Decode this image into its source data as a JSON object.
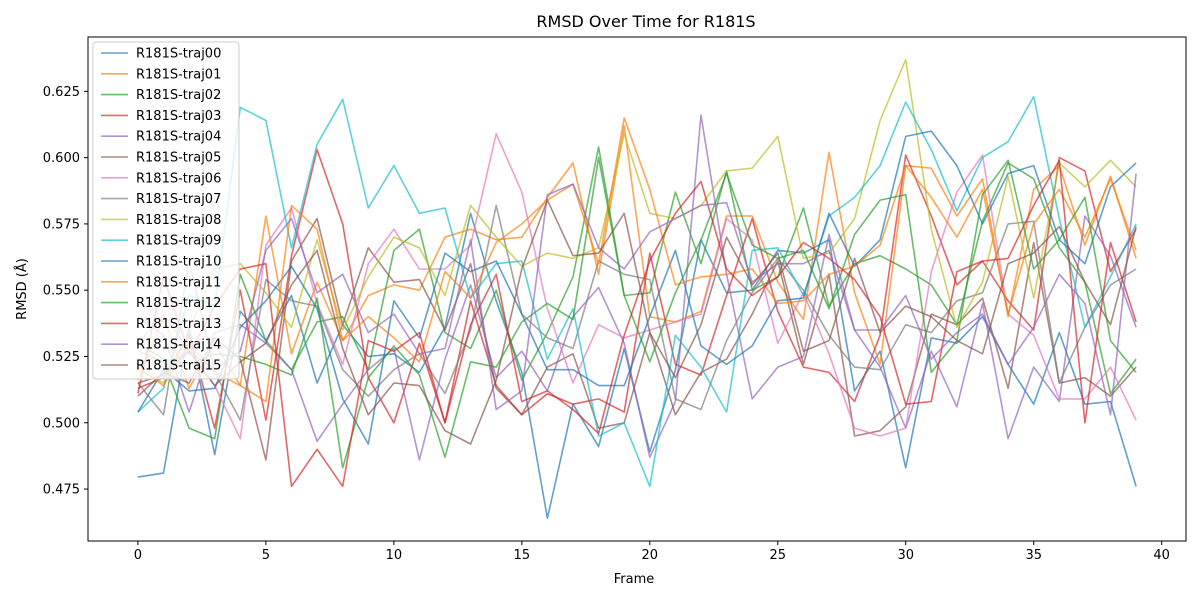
{
  "chart_data": {
    "type": "line",
    "title": "RMSD Over Time for R181S",
    "xlabel": "Frame",
    "ylabel": "RMSD (Å)",
    "xlim": [
      -1.95,
      40.95
    ],
    "ylim": [
      0.4554,
      0.6455
    ],
    "x_ticks": [
      0,
      5,
      10,
      15,
      20,
      25,
      30,
      35,
      40
    ],
    "y_ticks": [
      0.475,
      0.5,
      0.525,
      0.55,
      0.575,
      0.6,
      0.625
    ],
    "y_tick_labels": [
      "0.475",
      "0.500",
      "0.525",
      "0.550",
      "0.575",
      "0.600",
      "0.625"
    ],
    "x_tick_labels": [
      "0",
      "5",
      "10",
      "15",
      "20",
      "25",
      "30",
      "35",
      "40"
    ],
    "grid": false,
    "legend_position": "top-left",
    "x": [
      0,
      1,
      2,
      3,
      4,
      5,
      6,
      7,
      8,
      9,
      10,
      11,
      12,
      13,
      14,
      15,
      16,
      17,
      18,
      19,
      20,
      21,
      22,
      23,
      24,
      25,
      26,
      27,
      28,
      29,
      30,
      31,
      32,
      33,
      34,
      35,
      36,
      37,
      38,
      39
    ],
    "series": [
      {
        "name": "R181S-traj00",
        "color": "#1f77b4",
        "values": [
          0.4795,
          0.481,
          0.536,
          0.488,
          0.542,
          0.531,
          0.548,
          0.515,
          0.537,
          0.525,
          0.526,
          0.519,
          0.536,
          0.579,
          0.546,
          0.519,
          0.464,
          0.507,
          0.491,
          0.528,
          0.489,
          0.52,
          0.569,
          0.549,
          0.55,
          0.565,
          0.564,
          0.569,
          0.512,
          0.527,
          0.483,
          0.532,
          0.53,
          0.54,
          0.522,
          0.507,
          0.534,
          0.507,
          0.508,
          0.476
        ]
      },
      {
        "name": "R181S-traj01",
        "color": "#ff7f0e",
        "values": [
          0.516,
          0.54,
          0.513,
          0.53,
          0.514,
          0.578,
          0.526,
          0.553,
          0.531,
          0.548,
          0.552,
          0.55,
          0.57,
          0.573,
          0.569,
          0.57,
          0.585,
          0.598,
          0.556,
          0.612,
          0.54,
          0.538,
          0.542,
          0.578,
          0.578,
          0.553,
          0.539,
          0.602,
          0.549,
          0.522,
          0.597,
          0.596,
          0.578,
          0.592,
          0.54,
          0.588,
          0.597,
          0.567,
          0.593,
          0.562
        ]
      },
      {
        "name": "R181S-traj02",
        "color": "#2ca02c",
        "values": [
          0.527,
          0.523,
          0.498,
          0.494,
          0.556,
          0.531,
          0.52,
          0.538,
          0.54,
          0.52,
          0.565,
          0.573,
          0.534,
          0.528,
          0.55,
          0.516,
          0.534,
          0.555,
          0.604,
          0.548,
          0.549,
          0.587,
          0.56,
          0.595,
          0.55,
          0.555,
          0.581,
          0.544,
          0.56,
          0.563,
          0.558,
          0.552,
          0.537,
          0.576,
          0.598,
          0.592,
          0.566,
          0.553,
          0.511,
          0.524
        ]
      },
      {
        "name": "R181S-traj03",
        "color": "#d62728",
        "values": [
          0.513,
          0.517,
          0.533,
          0.498,
          0.55,
          0.501,
          0.563,
          0.603,
          0.575,
          0.517,
          0.5,
          0.53,
          0.5,
          0.546,
          0.514,
          0.503,
          0.511,
          0.507,
          0.509,
          0.504,
          0.564,
          0.522,
          0.518,
          0.548,
          0.577,
          0.542,
          0.521,
          0.519,
          0.508,
          0.533,
          0.601,
          0.578,
          0.552,
          0.561,
          0.546,
          0.535,
          0.6,
          0.595,
          0.557,
          0.573
        ]
      },
      {
        "name": "R181S-traj04",
        "color": "#9467bd",
        "values": [
          0.54,
          0.533,
          0.504,
          0.534,
          0.537,
          0.53,
          0.52,
          0.493,
          0.507,
          0.52,
          0.528,
          0.486,
          0.524,
          0.552,
          0.517,
          0.527,
          0.512,
          0.54,
          0.551,
          0.53,
          0.487,
          0.508,
          0.616,
          0.556,
          0.509,
          0.521,
          0.525,
          0.571,
          0.535,
          0.521,
          0.498,
          0.527,
          0.506,
          0.545,
          0.494,
          0.521,
          0.508,
          0.578,
          0.563,
          0.536
        ]
      },
      {
        "name": "R181S-traj05",
        "color": "#8c564b",
        "values": [
          0.51,
          0.519,
          0.515,
          0.532,
          0.524,
          0.486,
          0.561,
          0.577,
          0.537,
          0.566,
          0.553,
          0.554,
          0.535,
          0.56,
          0.513,
          0.503,
          0.521,
          0.526,
          0.498,
          0.5,
          0.534,
          0.503,
          0.519,
          0.524,
          0.541,
          0.561,
          0.522,
          0.556,
          0.495,
          0.497,
          0.506,
          0.541,
          0.537,
          0.547,
          0.513,
          0.568,
          0.515,
          0.517,
          0.51,
          0.521
        ]
      },
      {
        "name": "R181S-traj06",
        "color": "#e377c2",
        "values": [
          0.53,
          0.541,
          0.527,
          0.514,
          0.494,
          0.567,
          0.581,
          0.545,
          0.522,
          0.56,
          0.573,
          0.558,
          0.558,
          0.567,
          0.609,
          0.587,
          0.543,
          0.515,
          0.537,
          0.532,
          0.535,
          0.538,
          0.541,
          0.577,
          0.569,
          0.53,
          0.549,
          0.526,
          0.498,
          0.495,
          0.498,
          0.557,
          0.587,
          0.601,
          0.541,
          0.533,
          0.509,
          0.509,
          0.521,
          0.501
        ]
      },
      {
        "name": "R181S-traj07",
        "color": "#7f7f7f",
        "values": [
          0.515,
          0.503,
          0.561,
          0.519,
          0.501,
          0.554,
          0.546,
          0.544,
          0.52,
          0.51,
          0.52,
          0.526,
          0.511,
          0.535,
          0.582,
          0.541,
          0.532,
          0.528,
          0.561,
          0.556,
          0.554,
          0.509,
          0.505,
          0.531,
          0.549,
          0.562,
          0.55,
          0.533,
          0.521,
          0.52,
          0.537,
          0.534,
          0.546,
          0.549,
          0.575,
          0.576,
          0.515,
          0.536,
          0.552,
          0.558
        ]
      },
      {
        "name": "R181S-traj08",
        "color": "#bcbd22",
        "values": [
          0.52,
          0.515,
          0.535,
          0.558,
          0.56,
          0.549,
          0.536,
          0.569,
          0.535,
          0.555,
          0.57,
          0.566,
          0.548,
          0.582,
          0.57,
          0.559,
          0.564,
          0.562,
          0.566,
          0.609,
          0.579,
          0.577,
          0.582,
          0.595,
          0.596,
          0.608,
          0.562,
          0.564,
          0.577,
          0.614,
          0.637,
          0.573,
          0.536,
          0.553,
          0.593,
          0.547,
          0.598,
          0.589,
          0.599,
          0.589
        ]
      },
      {
        "name": "R181S-traj09",
        "color": "#17becf",
        "values": [
          0.504,
          0.513,
          0.548,
          0.544,
          0.619,
          0.614,
          0.566,
          0.605,
          0.622,
          0.581,
          0.597,
          0.579,
          0.581,
          0.547,
          0.56,
          0.561,
          0.524,
          0.543,
          0.495,
          0.5,
          0.476,
          0.533,
          0.521,
          0.504,
          0.565,
          0.566,
          0.548,
          0.578,
          0.585,
          0.597,
          0.621,
          0.603,
          0.58,
          0.6,
          0.606,
          0.623,
          0.577,
          0.536,
          0.555,
          0.575
        ]
      },
      {
        "name": "R181S-traj10",
        "color": "#1f77b4",
        "values": [
          0.504,
          0.52,
          0.512,
          0.513,
          0.536,
          0.546,
          0.559,
          0.543,
          0.509,
          0.492,
          0.546,
          0.532,
          0.564,
          0.557,
          0.561,
          0.541,
          0.52,
          0.52,
          0.514,
          0.514,
          0.54,
          0.565,
          0.529,
          0.522,
          0.529,
          0.546,
          0.547,
          0.579,
          0.559,
          0.569,
          0.608,
          0.61,
          0.597,
          0.575,
          0.594,
          0.597,
          0.569,
          0.56,
          0.589,
          0.598
        ]
      },
      {
        "name": "R181S-traj11",
        "color": "#ff7f0e",
        "values": [
          0.521,
          0.514,
          0.53,
          0.519,
          0.514,
          0.508,
          0.582,
          0.573,
          0.531,
          0.54,
          0.532,
          0.523,
          0.557,
          0.547,
          0.568,
          0.575,
          0.584,
          0.59,
          0.56,
          0.615,
          0.588,
          0.552,
          0.555,
          0.556,
          0.558,
          0.545,
          0.546,
          0.556,
          0.559,
          0.567,
          0.597,
          0.585,
          0.57,
          0.588,
          0.541,
          0.575,
          0.588,
          0.57,
          0.592,
          0.565
        ]
      },
      {
        "name": "R181S-traj12",
        "color": "#2ca02c",
        "values": [
          0.53,
          0.524,
          0.522,
          0.526,
          0.525,
          0.522,
          0.518,
          0.547,
          0.483,
          0.517,
          0.529,
          0.518,
          0.487,
          0.523,
          0.521,
          0.538,
          0.545,
          0.539,
          0.6,
          0.548,
          0.523,
          0.549,
          0.569,
          0.594,
          0.567,
          0.562,
          0.565,
          0.543,
          0.571,
          0.584,
          0.586,
          0.519,
          0.531,
          0.586,
          0.599,
          0.558,
          0.569,
          0.585,
          0.531,
          0.519
        ]
      },
      {
        "name": "R181S-traj13",
        "color": "#d62728",
        "values": [
          0.511,
          0.555,
          0.526,
          0.544,
          0.558,
          0.56,
          0.476,
          0.49,
          0.476,
          0.531,
          0.527,
          0.534,
          0.5,
          0.537,
          0.556,
          0.508,
          0.512,
          0.505,
          0.496,
          0.533,
          0.561,
          0.579,
          0.591,
          0.558,
          0.548,
          0.555,
          0.568,
          0.562,
          0.554,
          0.54,
          0.507,
          0.508,
          0.557,
          0.561,
          0.562,
          0.582,
          0.599,
          0.5,
          0.568,
          0.538
        ]
      },
      {
        "name": "R181S-traj14",
        "color": "#9467bd",
        "values": [
          0.524,
          0.521,
          0.527,
          0.52,
          0.527,
          0.565,
          0.577,
          0.549,
          0.556,
          0.534,
          0.541,
          0.526,
          0.528,
          0.569,
          0.505,
          0.512,
          0.586,
          0.59,
          0.566,
          0.558,
          0.572,
          0.577,
          0.582,
          0.583,
          0.553,
          0.56,
          0.56,
          0.565,
          0.535,
          0.535,
          0.548,
          0.524,
          0.534,
          0.541,
          0.522,
          0.536,
          0.556,
          0.545,
          0.503,
          0.594
        ]
      },
      {
        "name": "R181S-traj15",
        "color": "#8c564b",
        "values": [
          0.515,
          0.518,
          0.527,
          0.514,
          0.523,
          0.53,
          0.552,
          0.565,
          0.528,
          0.503,
          0.515,
          0.514,
          0.497,
          0.492,
          0.516,
          0.558,
          0.584,
          0.563,
          0.564,
          0.579,
          0.534,
          0.517,
          0.537,
          0.57,
          0.552,
          0.564,
          0.527,
          0.531,
          0.562,
          0.534,
          0.544,
          0.54,
          0.531,
          0.526,
          0.56,
          0.564,
          0.574,
          0.553,
          0.537,
          0.574
        ]
      }
    ]
  }
}
